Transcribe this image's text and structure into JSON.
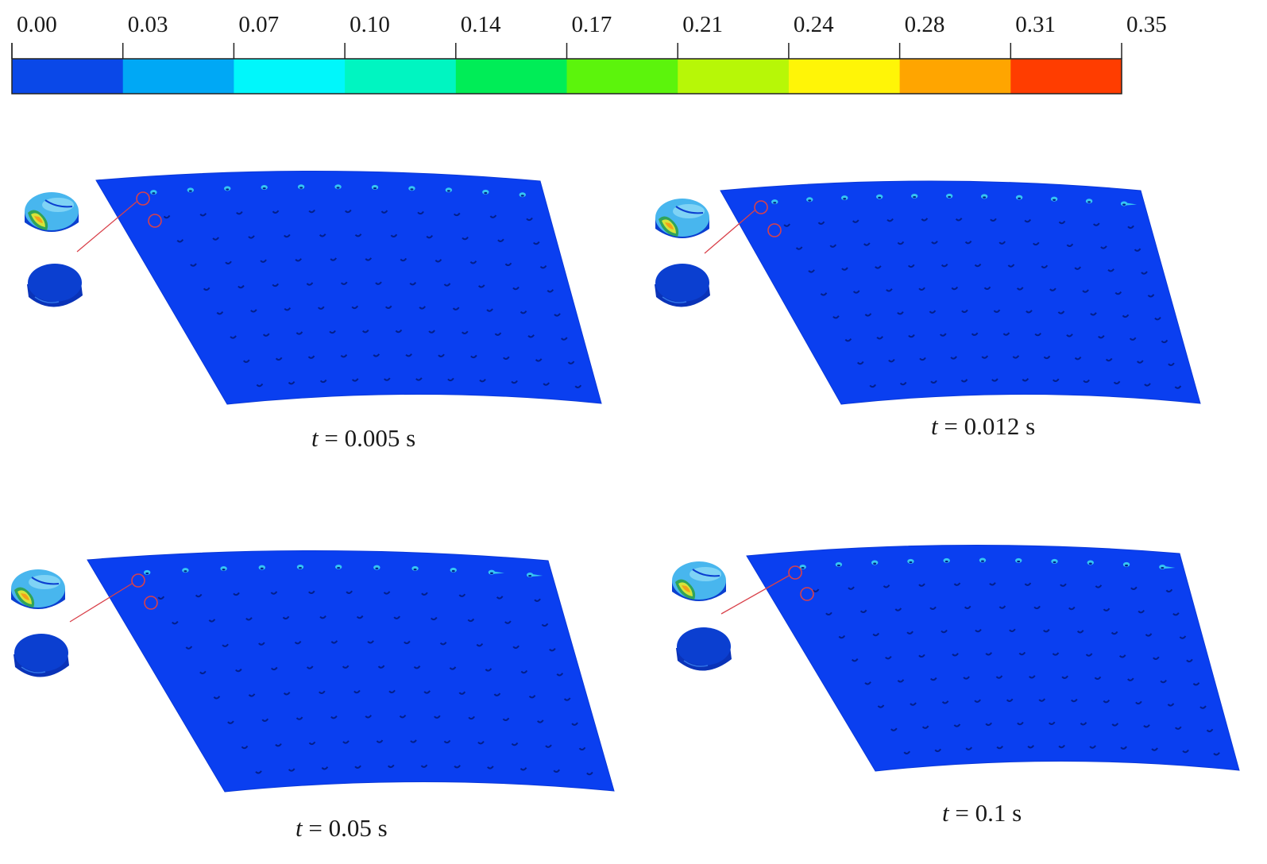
{
  "colorbar": {
    "tick_labels": [
      "0.00",
      "0.03",
      "0.07",
      "0.10",
      "0.14",
      "0.17",
      "0.21",
      "0.24",
      "0.28",
      "0.31",
      "0.35"
    ],
    "segment_colors": [
      "#0a48e8",
      "#00a8f5",
      "#00f7fb",
      "#00f5c1",
      "#00ed57",
      "#5cf40c",
      "#b7f707",
      "#fff507",
      "#ffa500",
      "#ff3d00"
    ]
  },
  "panels": [
    {
      "time_var": "t",
      "time_text": "= 0.005 s"
    },
    {
      "time_var": "t",
      "time_text": "= 0.012 s"
    },
    {
      "time_var": "t",
      "time_text": "= 0.05 s"
    },
    {
      "time_var": "t",
      "time_text": "= 0.1 s"
    }
  ],
  "colors": {
    "plate": "#0a3ff0",
    "plate_edge": "#0a38d8",
    "hole": "#031f8a",
    "hot_rivet": "#36c6f2",
    "detail_circle": "#d9414a",
    "leader_line": "#d9414a",
    "rivet_dark": "#0b3fd0",
    "rivet_light": "#48b6ee"
  },
  "icons": {
    "detail_stressed": "stressed-rivet-icon",
    "detail_unstressed": "unstressed-rivet-icon"
  }
}
